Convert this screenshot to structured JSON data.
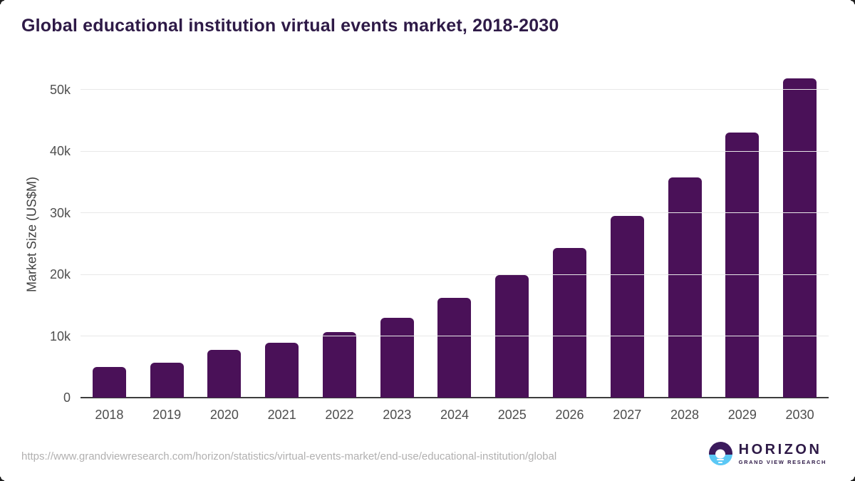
{
  "title": "Global educational institution virtual events market, 2018-2030",
  "source_url": "https://www.grandviewresearch.com/horizon/statistics/virtual-events-market/end-use/educational-institution/global",
  "logo": {
    "name": "HORIZON",
    "subtitle": "GRAND VIEW RESEARCH"
  },
  "colors": {
    "bar": "#4A1158",
    "title_text": "#2E1A47",
    "axis_tick_text": "#4D4D4D",
    "y_axis_title_text": "#404040",
    "gridline": "#E8E8E8",
    "axis_line": "#3D3D3D",
    "url_text": "#B1B0B0",
    "logo_purple": "#3B1A5C",
    "logo_blue": "#5BC8F5"
  },
  "chart_data": {
    "type": "bar",
    "title": "Global educational institution virtual events market, 2018-2030",
    "categories": [
      "2018",
      "2019",
      "2020",
      "2021",
      "2022",
      "2023",
      "2024",
      "2025",
      "2026",
      "2027",
      "2028",
      "2029",
      "2030"
    ],
    "values": [
      5000,
      5700,
      7800,
      8900,
      10600,
      13000,
      16200,
      19900,
      24300,
      29500,
      35800,
      43100,
      51900
    ],
    "xlabel": "",
    "ylabel": "Market Size (US$M)",
    "ylim": [
      0,
      53000
    ],
    "yticks": [
      {
        "value": 0,
        "label": "0"
      },
      {
        "value": 10000,
        "label": "10k"
      },
      {
        "value": 20000,
        "label": "20k"
      },
      {
        "value": 30000,
        "label": "30k"
      },
      {
        "value": 40000,
        "label": "40k"
      },
      {
        "value": 50000,
        "label": "50k"
      }
    ],
    "grid": "horizontal",
    "legend": "none",
    "unit": "US$M"
  }
}
